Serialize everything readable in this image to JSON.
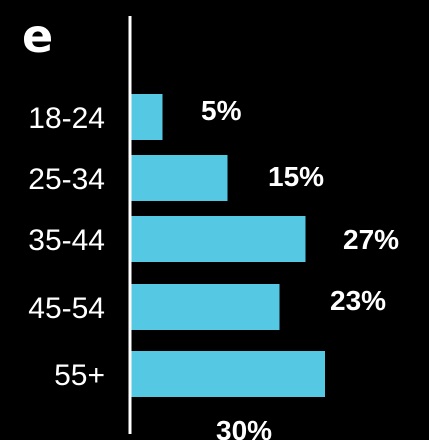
{
  "chart_data": {
    "type": "bar",
    "orientation": "horizontal",
    "title": "e",
    "categories": [
      "18-24",
      "25-34",
      "35-44",
      "45-54",
      "55+"
    ],
    "values": [
      5,
      15,
      27,
      23,
      30
    ],
    "value_labels": [
      "5%",
      "15%",
      "27%",
      "23%",
      "30%"
    ],
    "xlim": [
      0,
      30
    ],
    "grid": false,
    "legend": "none"
  },
  "colors": {
    "background": "#000000",
    "bar": "#55c8e3",
    "axis": "#ffffff",
    "text": "#ffffff"
  }
}
